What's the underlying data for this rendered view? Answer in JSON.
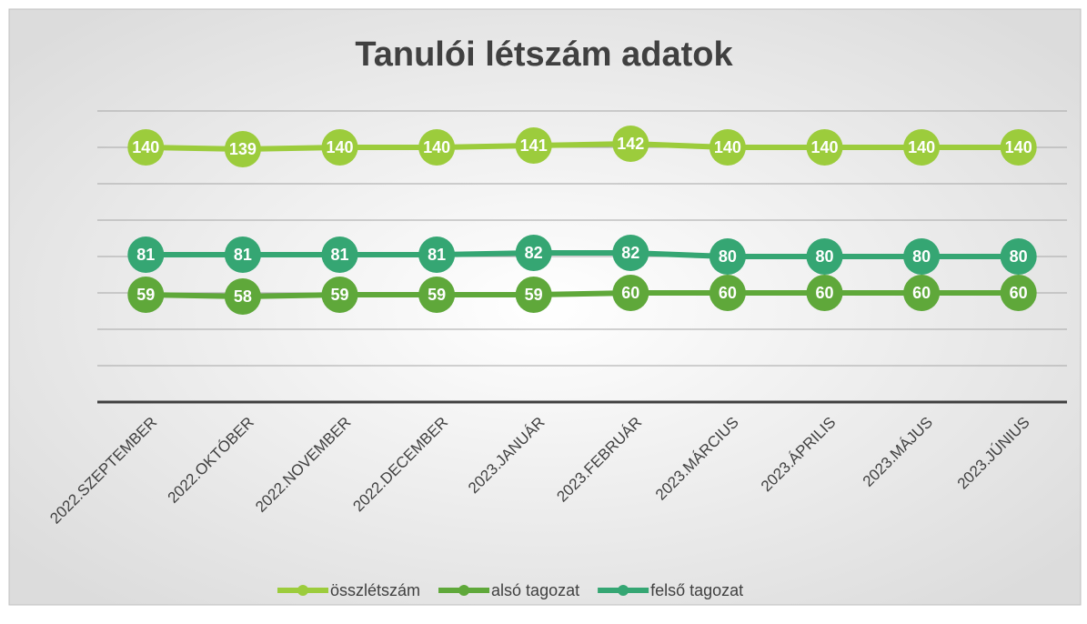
{
  "chart_data": {
    "type": "line",
    "title": "Tanulói létszám adatok",
    "categories": [
      "2022.SZEPTEMBER",
      "2022.OKTÓBER",
      "2022.NOVEMBER",
      "2022.DECEMBER",
      "2023.JANUÁR",
      "2023.FEBRUÁR",
      "2023.MÁRCIUS",
      "2023.ÁPRILIS",
      "2023.MÁJUS",
      "2023.JÚNIUS"
    ],
    "series": [
      {
        "name": "összlétszám",
        "color": "#9ccc3c",
        "values": [
          140,
          139,
          140,
          140,
          141,
          142,
          140,
          140,
          140,
          140
        ]
      },
      {
        "name": "alsó tagozat",
        "color": "#5fa83a",
        "values": [
          59,
          58,
          59,
          59,
          59,
          60,
          60,
          60,
          60,
          60
        ]
      },
      {
        "name": "felső tagozat",
        "color": "#35a673",
        "values": [
          81,
          81,
          81,
          81,
          82,
          82,
          80,
          80,
          80,
          80
        ]
      }
    ],
    "ylim": [
      0,
      160
    ],
    "yticks": [
      0,
      20,
      40,
      60,
      80,
      100,
      120,
      140,
      160
    ],
    "grid": true,
    "legend": "bottom"
  }
}
